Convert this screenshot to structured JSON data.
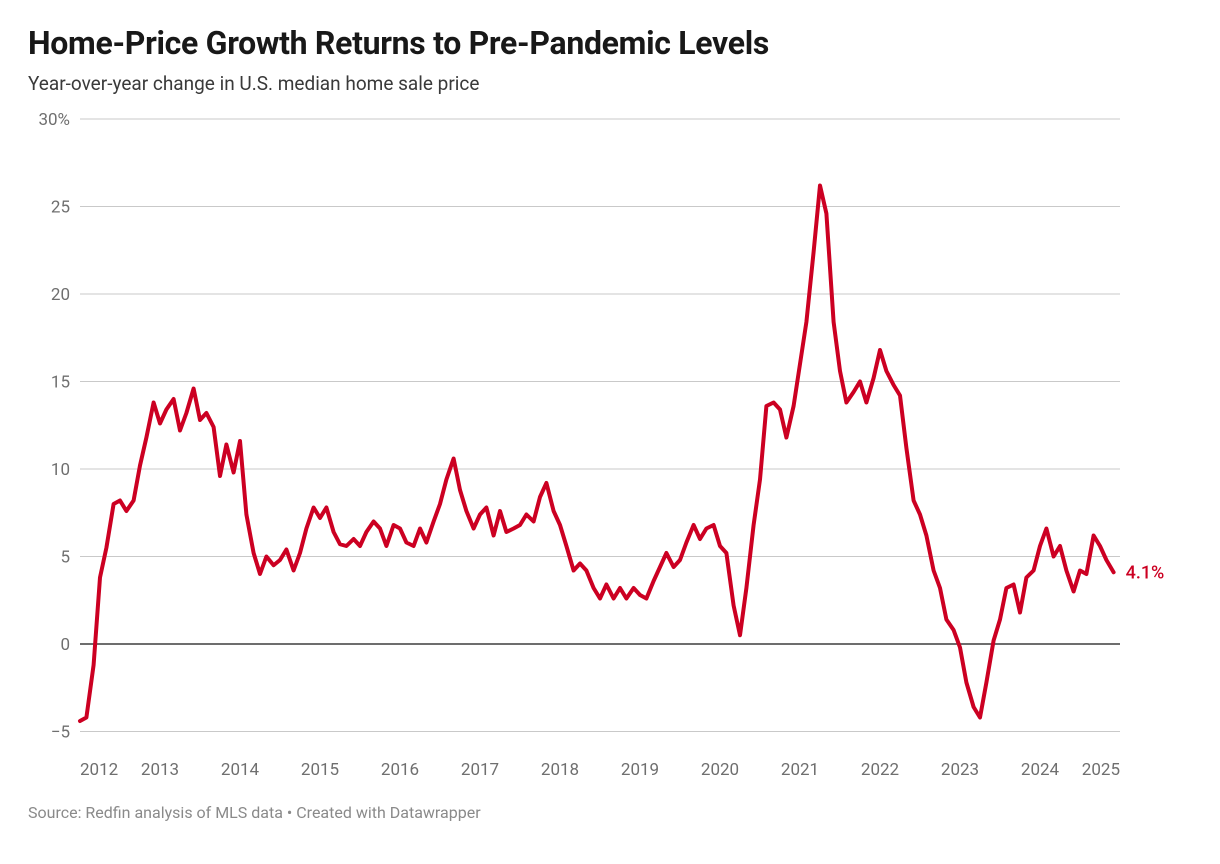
{
  "header": {
    "title": "Home-Price Growth Returns to Pre-Pandemic Levels",
    "subtitle": "Year-over-year change in U.S. median home sale price"
  },
  "footer": {
    "source": "Source: Redfin analysis of MLS data • Created with Datawrapper"
  },
  "chart": {
    "type": "line",
    "background_color": "#ffffff",
    "line_color": "#cc0022",
    "line_width": 4,
    "grid_color": "#c9c9c9",
    "zero_line_color": "#3d3d3d",
    "axis_label_color": "#6f6f6f",
    "axis_label_fontsize": 17,
    "end_label": "4.1%",
    "end_label_color": "#cc0022",
    "x": {
      "min": 2012.0,
      "max": 2025.0,
      "ticks": [
        2012,
        2013,
        2014,
        2015,
        2016,
        2017,
        2018,
        2019,
        2020,
        2021,
        2022,
        2023,
        2024,
        2025
      ],
      "tick_labels": [
        "2012",
        "2013",
        "2014",
        "2015",
        "2016",
        "2017",
        "2018",
        "2019",
        "2020",
        "2021",
        "2022",
        "2023",
        "2024",
        "2025"
      ]
    },
    "y": {
      "min": -6.0,
      "max": 30.0,
      "ticks": [
        -5,
        0,
        5,
        10,
        15,
        20,
        25,
        30
      ],
      "tick_labels": [
        "−5",
        "0",
        "5",
        "10",
        "15",
        "20",
        "25",
        "30%"
      ],
      "unit": "%"
    },
    "series": [
      {
        "name": "yoy_median_home_price_change",
        "points": [
          [
            2012.0,
            -4.4
          ],
          [
            2012.08,
            -4.2
          ],
          [
            2012.17,
            -1.2
          ],
          [
            2012.25,
            3.8
          ],
          [
            2012.33,
            5.5
          ],
          [
            2012.42,
            8.0
          ],
          [
            2012.5,
            8.2
          ],
          [
            2012.58,
            7.6
          ],
          [
            2012.67,
            8.2
          ],
          [
            2012.75,
            10.2
          ],
          [
            2012.83,
            11.8
          ],
          [
            2012.92,
            13.8
          ],
          [
            2013.0,
            12.6
          ],
          [
            2013.08,
            13.4
          ],
          [
            2013.17,
            14.0
          ],
          [
            2013.25,
            12.2
          ],
          [
            2013.33,
            13.2
          ],
          [
            2013.42,
            14.6
          ],
          [
            2013.5,
            12.8
          ],
          [
            2013.58,
            13.2
          ],
          [
            2013.67,
            12.4
          ],
          [
            2013.75,
            9.6
          ],
          [
            2013.83,
            11.4
          ],
          [
            2013.92,
            9.8
          ],
          [
            2014.0,
            11.6
          ],
          [
            2014.08,
            7.4
          ],
          [
            2014.17,
            5.2
          ],
          [
            2014.25,
            4.0
          ],
          [
            2014.33,
            5.0
          ],
          [
            2014.42,
            4.5
          ],
          [
            2014.5,
            4.8
          ],
          [
            2014.58,
            5.4
          ],
          [
            2014.67,
            4.2
          ],
          [
            2014.75,
            5.2
          ],
          [
            2014.83,
            6.6
          ],
          [
            2014.92,
            7.8
          ],
          [
            2015.0,
            7.2
          ],
          [
            2015.08,
            7.8
          ],
          [
            2015.17,
            6.4
          ],
          [
            2015.25,
            5.7
          ],
          [
            2015.33,
            5.6
          ],
          [
            2015.42,
            6.0
          ],
          [
            2015.5,
            5.6
          ],
          [
            2015.58,
            6.4
          ],
          [
            2015.67,
            7.0
          ],
          [
            2015.75,
            6.6
          ],
          [
            2015.83,
            5.6
          ],
          [
            2015.92,
            6.8
          ],
          [
            2016.0,
            6.6
          ],
          [
            2016.08,
            5.8
          ],
          [
            2016.17,
            5.6
          ],
          [
            2016.25,
            6.6
          ],
          [
            2016.33,
            5.8
          ],
          [
            2016.42,
            7.0
          ],
          [
            2016.5,
            8.0
          ],
          [
            2016.58,
            9.4
          ],
          [
            2016.67,
            10.6
          ],
          [
            2016.75,
            8.8
          ],
          [
            2016.83,
            7.6
          ],
          [
            2016.92,
            6.6
          ],
          [
            2017.0,
            7.4
          ],
          [
            2017.08,
            7.8
          ],
          [
            2017.17,
            6.2
          ],
          [
            2017.25,
            7.6
          ],
          [
            2017.33,
            6.4
          ],
          [
            2017.42,
            6.6
          ],
          [
            2017.5,
            6.8
          ],
          [
            2017.58,
            7.4
          ],
          [
            2017.67,
            7.0
          ],
          [
            2017.75,
            8.4
          ],
          [
            2017.83,
            9.2
          ],
          [
            2017.92,
            7.6
          ],
          [
            2018.0,
            6.8
          ],
          [
            2018.08,
            5.6
          ],
          [
            2018.17,
            4.2
          ],
          [
            2018.25,
            4.6
          ],
          [
            2018.33,
            4.2
          ],
          [
            2018.42,
            3.2
          ],
          [
            2018.5,
            2.6
          ],
          [
            2018.58,
            3.4
          ],
          [
            2018.67,
            2.6
          ],
          [
            2018.75,
            3.2
          ],
          [
            2018.83,
            2.6
          ],
          [
            2018.92,
            3.2
          ],
          [
            2019.0,
            2.8
          ],
          [
            2019.08,
            2.6
          ],
          [
            2019.17,
            3.6
          ],
          [
            2019.25,
            4.4
          ],
          [
            2019.33,
            5.2
          ],
          [
            2019.42,
            4.4
          ],
          [
            2019.5,
            4.8
          ],
          [
            2019.58,
            5.8
          ],
          [
            2019.67,
            6.8
          ],
          [
            2019.75,
            6.0
          ],
          [
            2019.83,
            6.6
          ],
          [
            2019.92,
            6.8
          ],
          [
            2020.0,
            5.6
          ],
          [
            2020.08,
            5.2
          ],
          [
            2020.17,
            2.2
          ],
          [
            2020.25,
            0.5
          ],
          [
            2020.33,
            3.2
          ],
          [
            2020.42,
            6.8
          ],
          [
            2020.5,
            9.4
          ],
          [
            2020.58,
            13.6
          ],
          [
            2020.67,
            13.8
          ],
          [
            2020.75,
            13.4
          ],
          [
            2020.83,
            11.8
          ],
          [
            2020.92,
            13.6
          ],
          [
            2021.0,
            16.0
          ],
          [
            2021.08,
            18.4
          ],
          [
            2021.17,
            22.4
          ],
          [
            2021.25,
            26.2
          ],
          [
            2021.33,
            24.6
          ],
          [
            2021.42,
            18.4
          ],
          [
            2021.5,
            15.6
          ],
          [
            2021.58,
            13.8
          ],
          [
            2021.67,
            14.4
          ],
          [
            2021.75,
            15.0
          ],
          [
            2021.83,
            13.8
          ],
          [
            2021.92,
            15.2
          ],
          [
            2022.0,
            16.8
          ],
          [
            2022.08,
            15.6
          ],
          [
            2022.17,
            14.8
          ],
          [
            2022.25,
            14.2
          ],
          [
            2022.33,
            11.2
          ],
          [
            2022.42,
            8.2
          ],
          [
            2022.5,
            7.4
          ],
          [
            2022.58,
            6.2
          ],
          [
            2022.67,
            4.2
          ],
          [
            2022.75,
            3.2
          ],
          [
            2022.83,
            1.4
          ],
          [
            2022.92,
            0.8
          ],
          [
            2023.0,
            -0.2
          ],
          [
            2023.08,
            -2.2
          ],
          [
            2023.17,
            -3.6
          ],
          [
            2023.25,
            -4.2
          ],
          [
            2023.33,
            -2.2
          ],
          [
            2023.42,
            0.2
          ],
          [
            2023.5,
            1.4
          ],
          [
            2023.58,
            3.2
          ],
          [
            2023.67,
            3.4
          ],
          [
            2023.75,
            1.8
          ],
          [
            2023.83,
            3.8
          ],
          [
            2023.92,
            4.2
          ],
          [
            2024.0,
            5.6
          ],
          [
            2024.08,
            6.6
          ],
          [
            2024.17,
            5.0
          ],
          [
            2024.25,
            5.6
          ],
          [
            2024.33,
            4.2
          ],
          [
            2024.42,
            3.0
          ],
          [
            2024.5,
            4.2
          ],
          [
            2024.58,
            4.0
          ],
          [
            2024.67,
            6.2
          ],
          [
            2024.75,
            5.6
          ],
          [
            2024.83,
            4.8
          ],
          [
            2024.92,
            4.1
          ]
        ]
      }
    ]
  }
}
